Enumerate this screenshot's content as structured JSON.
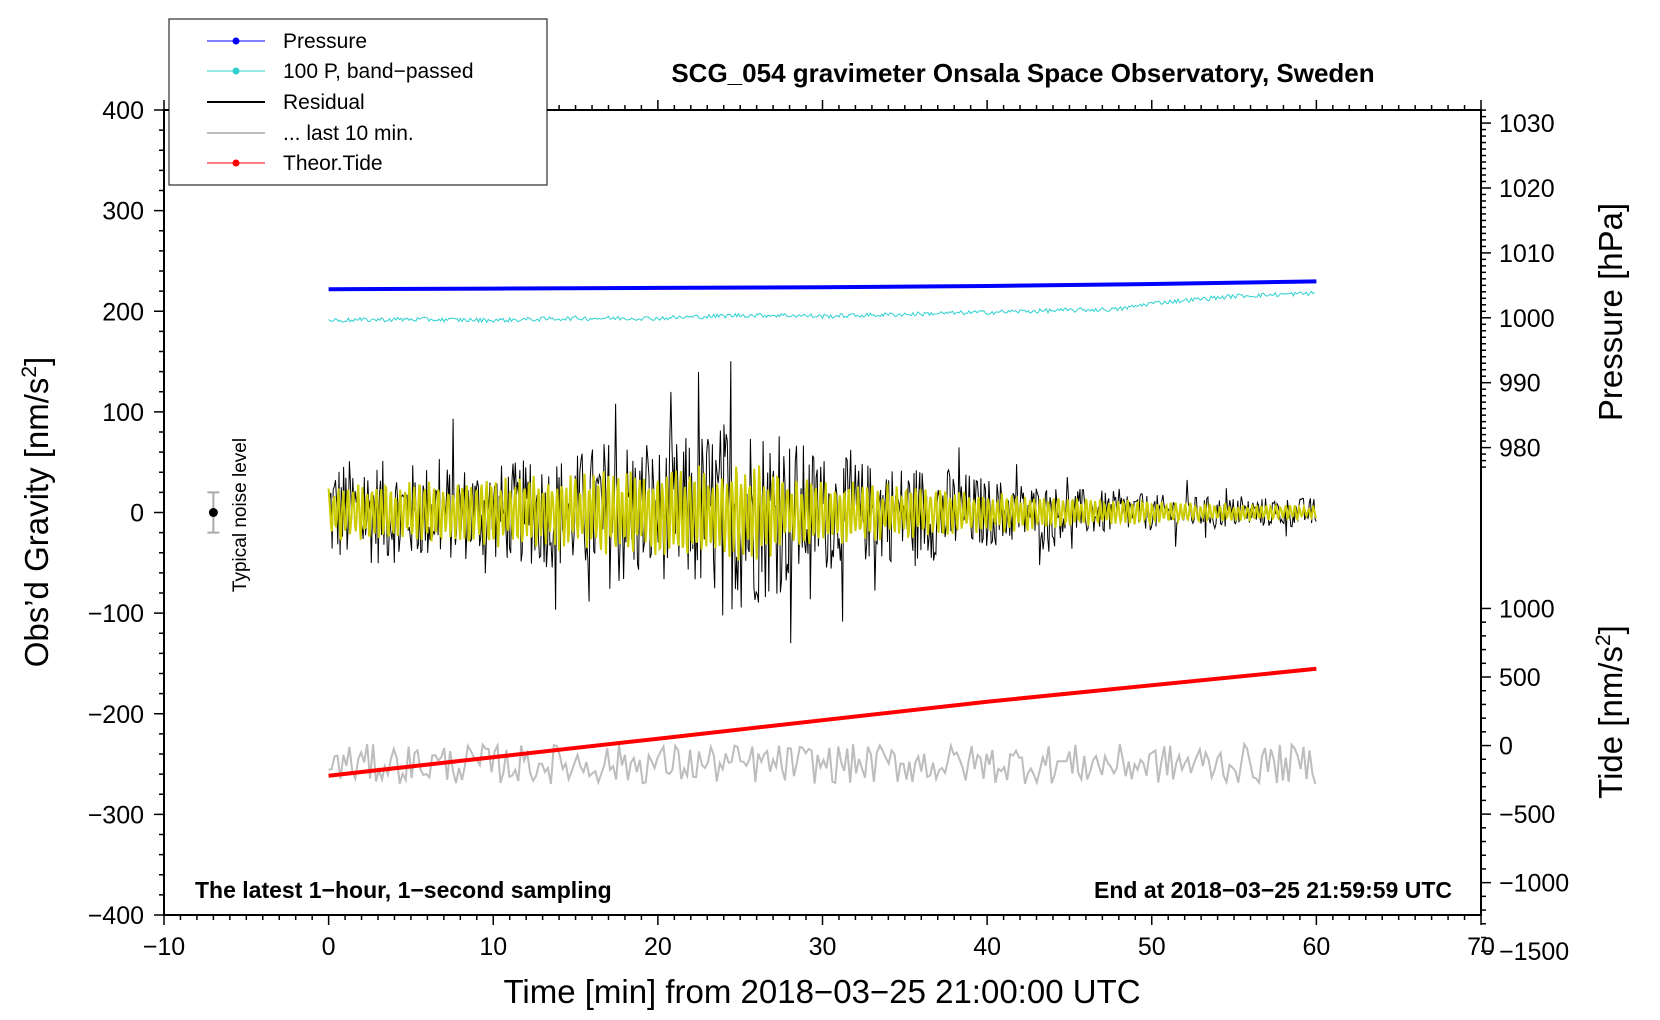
{
  "chart_data": {
    "type": "line",
    "title": "SCG_054 gravimeter Onsala Space Observatory, Sweden",
    "xlabel": "Time [min] from 2018−03−25 21:00:00 UTC",
    "ylabel_left": "Obs’d Gravity [nm/s",
    "ylabel_left_sup": "2",
    "ylabel_left_close": "]",
    "ylabel_right_pressure": "Pressure [hPa]",
    "ylabel_right_tide": "Tide [nm/s",
    "ylabel_right_tide_sup": "2",
    "ylabel_right_tide_close": "]",
    "xlim": [
      -10,
      70
    ],
    "ylim_gravity": [
      -400,
      400
    ],
    "x_ticks": [
      {
        "value": -10,
        "label": "−10"
      },
      {
        "value": 0,
        "label": "0"
      },
      {
        "value": 10,
        "label": "10"
      },
      {
        "value": 20,
        "label": "20"
      },
      {
        "value": 30,
        "label": "30"
      },
      {
        "value": 40,
        "label": "40"
      },
      {
        "value": 50,
        "label": "50"
      },
      {
        "value": 60,
        "label": "60"
      },
      {
        "value": 70,
        "label": "70"
      }
    ],
    "y_ticks_gravity": [
      {
        "value": 400,
        "label": "400"
      },
      {
        "value": 300,
        "label": "300"
      },
      {
        "value": 200,
        "label": "200"
      },
      {
        "value": 100,
        "label": "100"
      },
      {
        "value": 0,
        "label": "0"
      },
      {
        "value": -100,
        "label": "−100"
      },
      {
        "value": -200,
        "label": "−200"
      },
      {
        "value": -300,
        "label": "−300"
      },
      {
        "value": -400,
        "label": "−400"
      }
    ],
    "pressure_axis": {
      "mapping": {
        "p_at_gravity_0": 970,
        "gravity_per_hPa": 6.45
      },
      "ticks": [
        {
          "value": 980,
          "label": "980"
        },
        {
          "value": 990,
          "label": "990"
        },
        {
          "value": 1000,
          "label": "1000"
        },
        {
          "value": 1010,
          "label": "1010"
        },
        {
          "value": 1020,
          "label": "1020"
        },
        {
          "value": 1030,
          "label": "1030"
        }
      ]
    },
    "tide_axis": {
      "mapping": {
        "tide_at_gravity_0": 1700,
        "tide_per_gravity_unit": 7.34
      },
      "ticks": [
        {
          "value": 1000,
          "label": "1000"
        },
        {
          "value": 500,
          "label": "500"
        },
        {
          "value": 0,
          "label": "0"
        },
        {
          "value": -500,
          "label": "−500"
        },
        {
          "value": -1000,
          "label": "−1000"
        },
        {
          "value": -1500,
          "label": "−1500"
        }
      ]
    },
    "series": [
      {
        "name": "Pressure",
        "color": "#0000ff",
        "kind": "pressure",
        "x": [
          0,
          10,
          20,
          30,
          40,
          50,
          60
        ],
        "values": [
          1004.4,
          1004.5,
          1004.6,
          1004.7,
          1004.9,
          1005.2,
          1005.6
        ]
      },
      {
        "name": "100 P, band−passed",
        "color": "#2fd0d0",
        "kind": "gravity_noisy",
        "noise": 2.2,
        "x": [
          0,
          5,
          10,
          15,
          20,
          25,
          28,
          30,
          35,
          40,
          45,
          48,
          50,
          55,
          60
        ],
        "values": [
          191,
          192,
          191,
          193,
          193,
          196,
          196,
          195,
          197,
          199,
          201,
          202,
          208,
          215,
          218
        ]
      },
      {
        "name": "Residual",
        "color": "#000000",
        "kind": "residual",
        "amplitude_x": [
          0,
          5,
          10,
          15,
          17.5,
          20,
          25,
          27,
          30,
          33,
          37,
          40,
          45,
          50,
          55,
          60
        ],
        "amplitude": [
          55,
          50,
          48,
          60,
          80,
          65,
          100,
          85,
          60,
          50,
          48,
          35,
          25,
          18,
          15,
          15
        ]
      },
      {
        "name": "... last 10 min.",
        "color": "#bdbdbd",
        "kind": "gravity_noisy",
        "noise": 18,
        "x": [
          0,
          30,
          60
        ],
        "values": [
          -250,
          -250,
          -250
        ]
      },
      {
        "name": "Theor.Tide",
        "color": "#ff0000",
        "kind": "tide",
        "x": [
          0,
          20,
          40,
          60
        ],
        "values": [
          -220,
          50,
          320,
          560
        ]
      },
      {
        "name": "band-passed residual",
        "color": "#cccc00",
        "kind": "residual_smooth",
        "amplitude_x": [
          0,
          10,
          20,
          25,
          30,
          40,
          50,
          60
        ],
        "amplitude": [
          25,
          30,
          40,
          45,
          30,
          18,
          10,
          6
        ]
      }
    ],
    "legend": {
      "placement": "top-left",
      "entries": [
        {
          "label": "Pressure",
          "color": "#0000ff",
          "marker": true
        },
        {
          "label": "100 P, band−passed",
          "color": "#2fd0d0",
          "marker": true
        },
        {
          "label": "Residual",
          "color": "#000000",
          "marker": false
        },
        {
          "label": "... last 10 min.",
          "color": "#bdbdbd",
          "marker": false
        },
        {
          "label": "Theor.Tide",
          "color": "#ff0000",
          "marker": true
        }
      ]
    },
    "noise_indicator": {
      "label": "Typical noise level",
      "x": -7,
      "center": 0,
      "half_range": 20
    },
    "annotations": {
      "bottom_left": "The latest 1−hour, 1−second sampling",
      "bottom_right": "End at 2018−03−25 21:59:59 UTC"
    }
  }
}
